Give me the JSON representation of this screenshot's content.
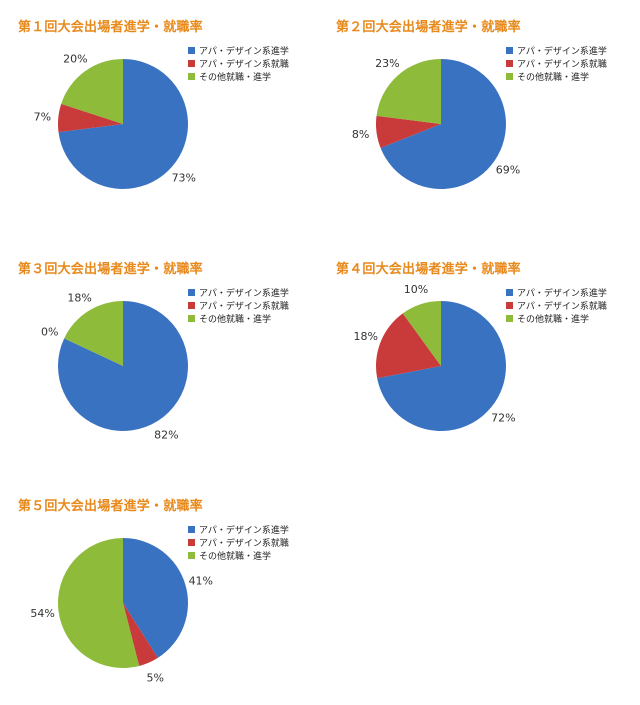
{
  "legend_labels": [
    "アパ・デザイン系進学",
    "アパ・デザイン系就職",
    "その他就職・進学"
  ],
  "colors": [
    "#3a72c2",
    "#c93a3a",
    "#8ebc3a"
  ],
  "chart_data": [
    {
      "type": "pie",
      "title": "第１回大会出場者進学・就職率",
      "categories": [
        "アパ・デザイン系進学",
        "アパ・デザイン系就職",
        "その他就職・進学"
      ],
      "values": [
        73,
        7,
        20
      ],
      "value_labels": [
        "73%",
        "7%",
        "20%"
      ]
    },
    {
      "type": "pie",
      "title": "第２回大会出場者進学・就職率",
      "categories": [
        "アパ・デザイン系進学",
        "アパ・デザイン系就職",
        "その他就職・進学"
      ],
      "values": [
        69,
        8,
        23
      ],
      "value_labels": [
        "69%",
        "8%",
        "23%"
      ]
    },
    {
      "type": "pie",
      "title": "第３回大会出場者進学・就職率",
      "categories": [
        "アパ・デザイン系進学",
        "アパ・デザイン系就職",
        "その他就職・進学"
      ],
      "values": [
        82,
        0,
        18
      ],
      "value_labels": [
        "82%",
        "0%",
        "18%"
      ]
    },
    {
      "type": "pie",
      "title": "第４回大会出場者進学・就職率",
      "categories": [
        "アパ・デザイン系進学",
        "アパ・デザイン系就職",
        "その他就職・進学"
      ],
      "values": [
        72,
        18,
        10
      ],
      "value_labels": [
        "72%",
        "18%",
        "10%"
      ]
    },
    {
      "type": "pie",
      "title": "第５回大会出場者進学・就職率",
      "categories": [
        "アパ・デザイン系進学",
        "アパ・デザイン系就職",
        "その他就職・進学"
      ],
      "values": [
        41,
        5,
        54
      ],
      "value_labels": [
        "41%",
        "5%",
        "54%"
      ]
    }
  ]
}
